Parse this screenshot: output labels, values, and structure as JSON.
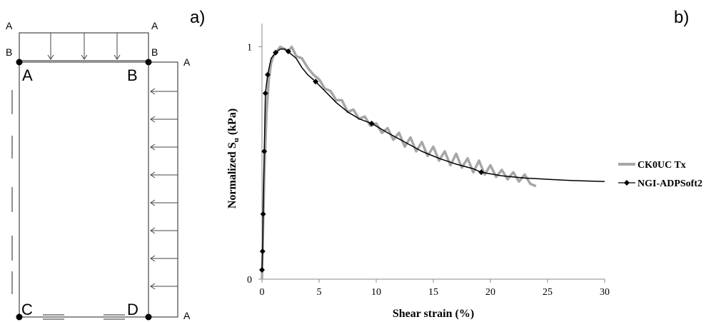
{
  "panel_a": {
    "label": "a)",
    "top_load_labels": [
      "A",
      "A",
      "B",
      "B"
    ],
    "corner_labels": {
      "top_left": "A",
      "top_right": "B",
      "bottom_left": "C",
      "bottom_right": "D"
    },
    "side_load_labels": [
      "A",
      "A"
    ]
  },
  "panel_b": {
    "label": "b)"
  },
  "chart_data": {
    "type": "line",
    "xlabel": "Shear strain (%)",
    "ylabel_main": "Normalized S",
    "ylabel_sub": "u",
    "ylabel_unit": " (kPa)",
    "xlim": [
      0,
      30
    ],
    "ylim": [
      0,
      1.1
    ],
    "x_ticks": [
      0,
      5,
      10,
      15,
      20,
      25,
      30
    ],
    "x_tick_labels": [
      "0",
      "5",
      "10",
      "15",
      "20",
      "25",
      "30"
    ],
    "y_ticks": [
      0,
      1
    ],
    "y_tick_labels": [
      "0",
      "1"
    ],
    "legend_position": "right",
    "series": [
      {
        "name": "CK0UC Tx",
        "color": "#a6a6a6",
        "style": "thick-line",
        "x": [
          0,
          0.2,
          0.4,
          0.6,
          0.8,
          1.0,
          1.3,
          1.6,
          2.0,
          2.3,
          2.6,
          3.0,
          3.5,
          4.0,
          4.5,
          5.0,
          5.5,
          6.0,
          6.5,
          7.0,
          7.5,
          8.0,
          8.5,
          9.0,
          9.5,
          10.0,
          10.5,
          11.0,
          11.5,
          12.0,
          12.5,
          13.0,
          13.5,
          14.0,
          14.5,
          15.0,
          15.5,
          16.0,
          16.5,
          17.0,
          17.5,
          18.0,
          18.5,
          19.0,
          19.5,
          20.0,
          20.5,
          21.0,
          21.5,
          22.0,
          22.5,
          23.0,
          23.5,
          24.0
        ],
        "y": [
          0.0,
          0.45,
          0.72,
          0.86,
          0.93,
          0.96,
          0.98,
          1.0,
          0.99,
          0.98,
          1.0,
          0.96,
          0.95,
          0.91,
          0.88,
          0.86,
          0.82,
          0.81,
          0.77,
          0.77,
          0.72,
          0.73,
          0.69,
          0.7,
          0.66,
          0.67,
          0.63,
          0.65,
          0.6,
          0.63,
          0.57,
          0.61,
          0.55,
          0.59,
          0.53,
          0.57,
          0.51,
          0.55,
          0.49,
          0.54,
          0.48,
          0.52,
          0.46,
          0.51,
          0.45,
          0.49,
          0.44,
          0.47,
          0.43,
          0.46,
          0.42,
          0.45,
          0.41,
          0.4
        ]
      },
      {
        "name": "NGI-ADPSoft2",
        "color": "#000000",
        "style": "line-diamond",
        "x": [
          0,
          0.05,
          0.1,
          0.2,
          0.3,
          0.5,
          0.8,
          1.2,
          1.6,
          2.0,
          2.4,
          3.0,
          3.5,
          4.0,
          4.7,
          5.5,
          6.5,
          7.5,
          8.5,
          9.6,
          11.0,
          12.5,
          14.0,
          15.5,
          17.0,
          18.5,
          19.2,
          21.0,
          23.0,
          25.0,
          27.0,
          30.0
        ],
        "y": [
          0.04,
          0.12,
          0.28,
          0.55,
          0.8,
          0.88,
          0.95,
          0.975,
          0.99,
          0.99,
          0.975,
          0.95,
          0.91,
          0.88,
          0.85,
          0.81,
          0.76,
          0.72,
          0.69,
          0.67,
          0.63,
          0.59,
          0.55,
          0.52,
          0.495,
          0.475,
          0.46,
          0.445,
          0.435,
          0.43,
          0.425,
          0.42
        ],
        "markers_x": [
          0,
          0.05,
          0.1,
          0.2,
          0.3,
          0.5,
          1.2,
          2.3,
          4.7,
          9.6,
          19.2
        ],
        "markers_y": [
          0.04,
          0.12,
          0.28,
          0.55,
          0.8,
          0.88,
          0.975,
          0.98,
          0.85,
          0.67,
          0.46
        ]
      }
    ]
  }
}
